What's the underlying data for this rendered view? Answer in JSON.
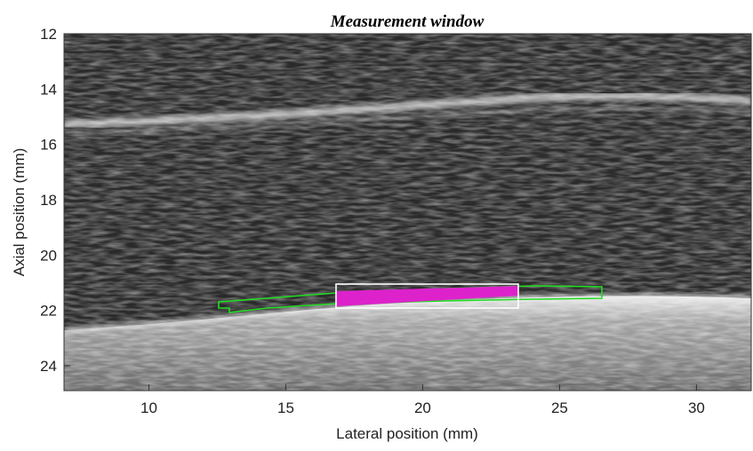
{
  "chart_data": {
    "type": "image",
    "title": "Measurement window",
    "x_label": "Lateral position (mm)",
    "y_label": "Axial position (mm)",
    "xlim": [
      6.9,
      32
    ],
    "xticks": [
      10,
      15,
      20,
      25,
      30
    ],
    "ylim": [
      24.9,
      12
    ],
    "yticks": [
      12,
      14,
      16,
      18,
      20,
      22,
      24
    ],
    "y_reversed": true
  }
}
